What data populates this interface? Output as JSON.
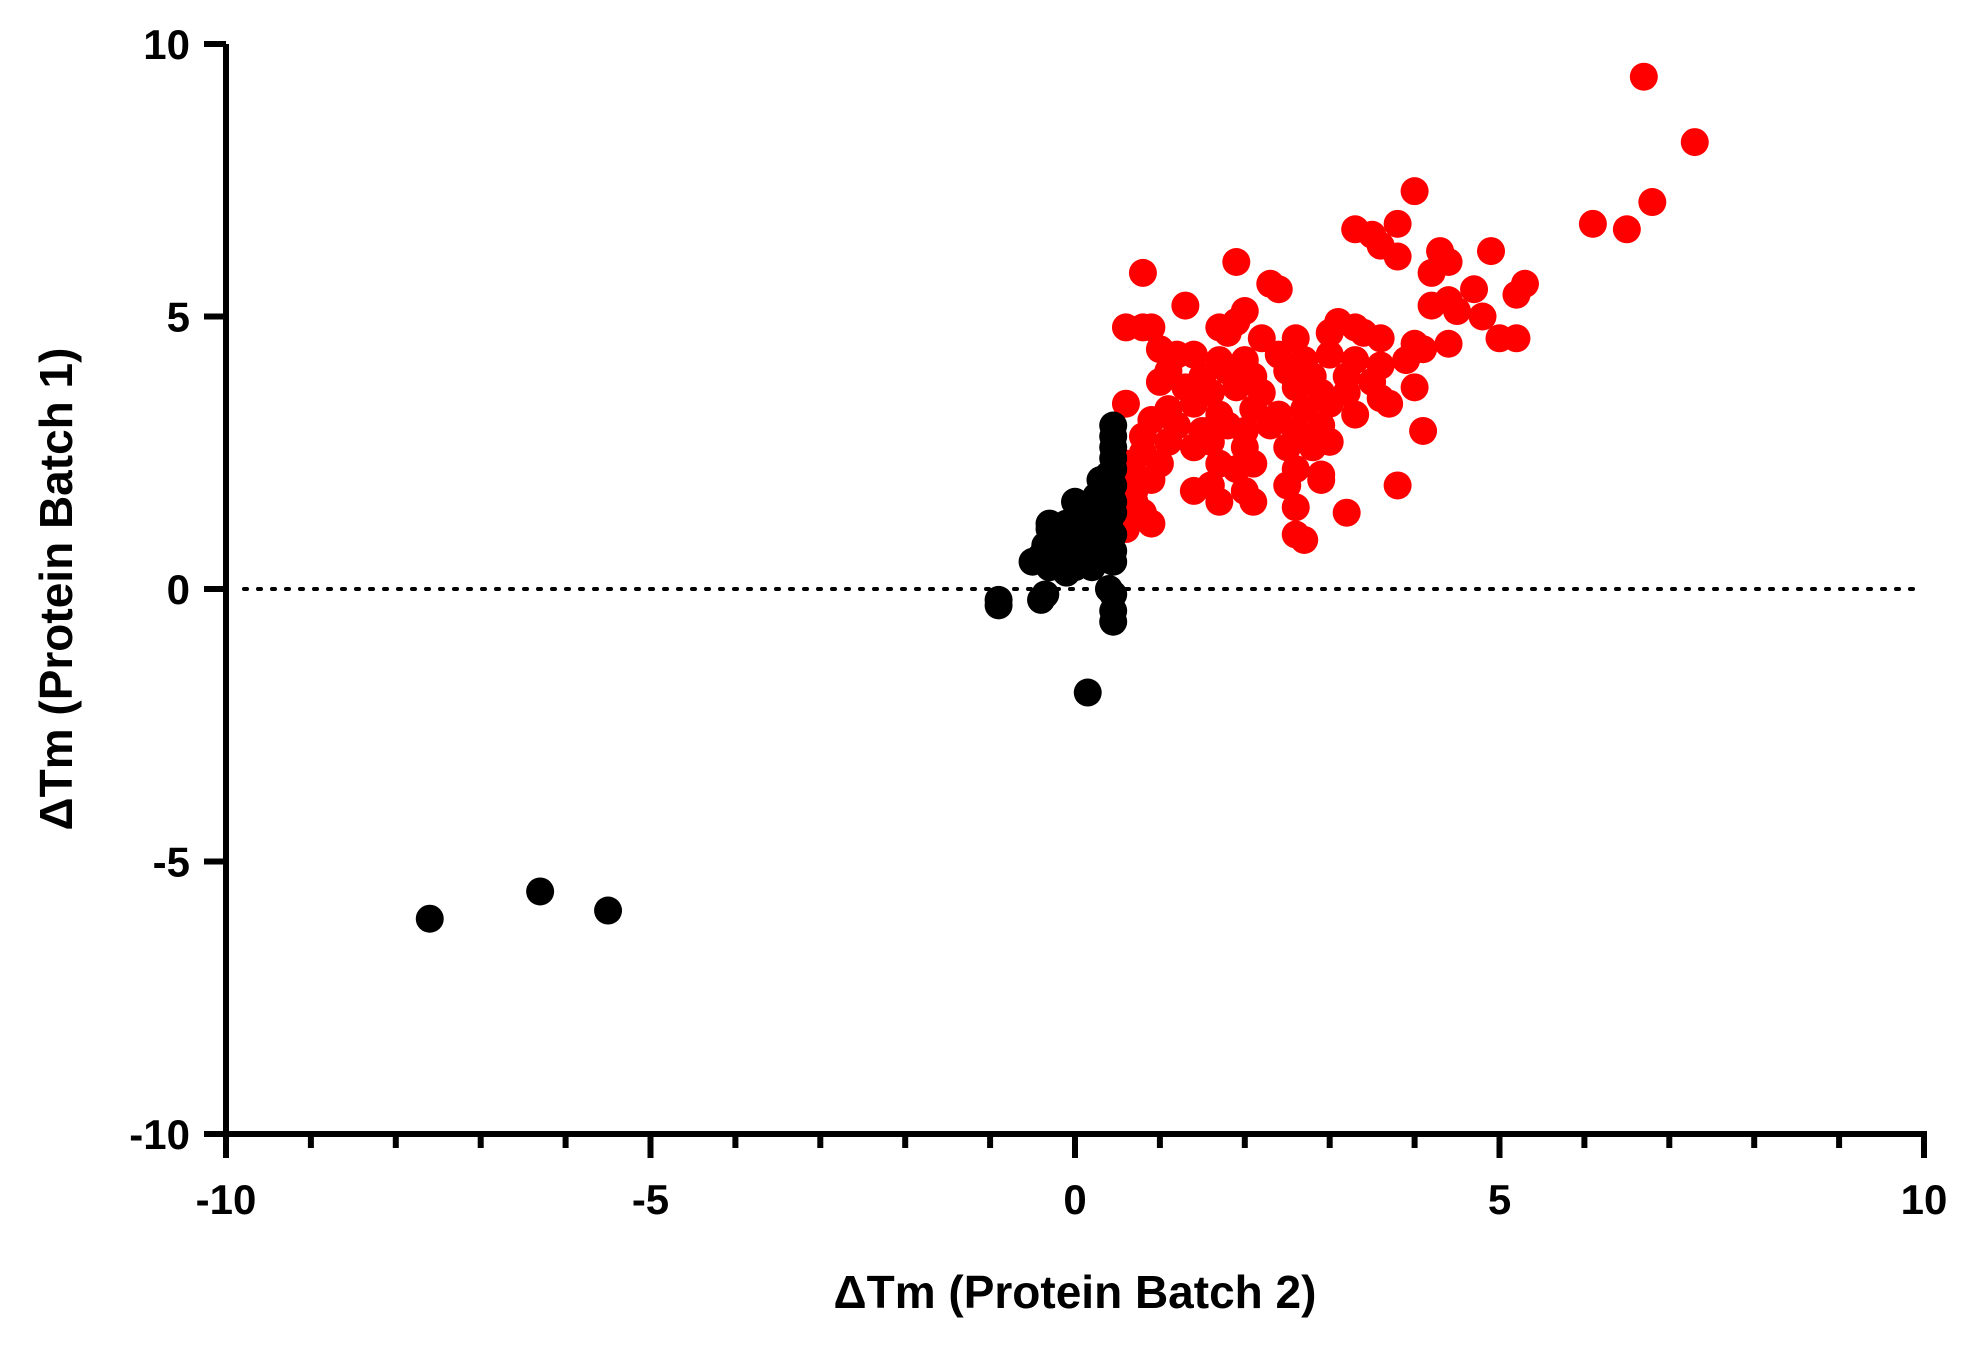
{
  "chart_data": {
    "type": "scatter",
    "title": "",
    "xlabel": "ΔTm (Protein Batch 2)",
    "ylabel": "ΔTm (Protein Batch 1)",
    "xlim": [
      -10,
      10
    ],
    "ylim": [
      -10,
      10
    ],
    "x_ticks": [
      "-10",
      "-5",
      "0",
      "5",
      "10"
    ],
    "y_ticks": [
      "10",
      "5",
      "0",
      "-5",
      "-10"
    ],
    "x_minor_step": 1,
    "reference_line": {
      "y": 0,
      "style": "dotted"
    },
    "grid": false,
    "legend": "none",
    "series": [
      {
        "color": "#ff0000",
        "points": [
          [
            6.7,
            9.4
          ],
          [
            7.3,
            8.2
          ],
          [
            6.8,
            7.1
          ],
          [
            6.1,
            6.7
          ],
          [
            6.5,
            6.6
          ],
          [
            4.0,
            7.3
          ],
          [
            3.8,
            6.7
          ],
          [
            3.3,
            6.6
          ],
          [
            3.5,
            6.5
          ],
          [
            3.6,
            6.3
          ],
          [
            3.8,
            6.1
          ],
          [
            4.3,
            6.2
          ],
          [
            4.4,
            6.0
          ],
          [
            4.9,
            6.2
          ],
          [
            4.2,
            5.8
          ],
          [
            1.9,
            6.0
          ],
          [
            0.8,
            5.8
          ],
          [
            2.3,
            5.6
          ],
          [
            2.4,
            5.5
          ],
          [
            5.3,
            5.6
          ],
          [
            5.2,
            5.4
          ],
          [
            4.7,
            5.5
          ],
          [
            4.4,
            5.3
          ],
          [
            4.2,
            5.2
          ],
          [
            4.5,
            5.1
          ],
          [
            4.8,
            5.0
          ],
          [
            1.3,
            5.2
          ],
          [
            2.0,
            5.1
          ],
          [
            1.9,
            4.9
          ],
          [
            3.1,
            4.9
          ],
          [
            3.3,
            4.8
          ],
          [
            0.6,
            4.8
          ],
          [
            0.8,
            4.8
          ],
          [
            0.9,
            4.8
          ],
          [
            1.7,
            4.8
          ],
          [
            1.8,
            4.7
          ],
          [
            2.2,
            4.6
          ],
          [
            2.6,
            4.6
          ],
          [
            3.0,
            4.7
          ],
          [
            3.4,
            4.7
          ],
          [
            3.6,
            4.6
          ],
          [
            4.0,
            4.5
          ],
          [
            4.1,
            4.4
          ],
          [
            4.4,
            4.5
          ],
          [
            5.0,
            4.6
          ],
          [
            5.2,
            4.6
          ],
          [
            1.0,
            4.4
          ],
          [
            1.2,
            4.3
          ],
          [
            1.4,
            4.3
          ],
          [
            1.7,
            4.2
          ],
          [
            2.0,
            4.2
          ],
          [
            2.4,
            4.3
          ],
          [
            2.7,
            4.2
          ],
          [
            3.0,
            4.3
          ],
          [
            3.3,
            4.2
          ],
          [
            3.6,
            4.1
          ],
          [
            3.9,
            4.2
          ],
          [
            1.1,
            4.0
          ],
          [
            1.5,
            3.9
          ],
          [
            1.8,
            4.0
          ],
          [
            2.1,
            3.9
          ],
          [
            2.5,
            4.0
          ],
          [
            2.8,
            3.9
          ],
          [
            3.2,
            3.9
          ],
          [
            3.5,
            3.8
          ],
          [
            1.0,
            3.8
          ],
          [
            1.3,
            3.7
          ],
          [
            1.6,
            3.6
          ],
          [
            1.9,
            3.7
          ],
          [
            2.2,
            3.6
          ],
          [
            2.6,
            3.7
          ],
          [
            2.9,
            3.6
          ],
          [
            3.2,
            3.6
          ],
          [
            4.0,
            3.7
          ],
          [
            0.6,
            3.4
          ],
          [
            1.1,
            3.3
          ],
          [
            1.4,
            3.4
          ],
          [
            1.7,
            3.2
          ],
          [
            2.1,
            3.3
          ],
          [
            2.4,
            3.2
          ],
          [
            2.7,
            3.3
          ],
          [
            3.0,
            3.4
          ],
          [
            3.3,
            3.2
          ],
          [
            3.6,
            3.5
          ],
          [
            3.7,
            3.4
          ],
          [
            0.9,
            3.1
          ],
          [
            1.2,
            3.0
          ],
          [
            1.5,
            2.9
          ],
          [
            1.8,
            3.0
          ],
          [
            2.0,
            2.9
          ],
          [
            2.3,
            3.0
          ],
          [
            2.6,
            2.9
          ],
          [
            2.9,
            3.0
          ],
          [
            4.1,
            2.9
          ],
          [
            0.8,
            2.8
          ],
          [
            1.1,
            2.7
          ],
          [
            1.4,
            2.6
          ],
          [
            1.6,
            2.7
          ],
          [
            2.0,
            2.6
          ],
          [
            2.5,
            2.6
          ],
          [
            2.8,
            2.6
          ],
          [
            3.0,
            2.7
          ],
          [
            1.0,
            2.3
          ],
          [
            1.7,
            2.3
          ],
          [
            1.9,
            2.2
          ],
          [
            2.1,
            2.3
          ],
          [
            2.6,
            2.2
          ],
          [
            2.9,
            2.1
          ],
          [
            0.7,
            2.1
          ],
          [
            0.9,
            2.0
          ],
          [
            1.4,
            1.8
          ],
          [
            1.6,
            1.9
          ],
          [
            2.0,
            1.8
          ],
          [
            2.5,
            1.9
          ],
          [
            2.9,
            2.0
          ],
          [
            3.8,
            1.9
          ],
          [
            0.7,
            1.8
          ],
          [
            1.7,
            1.6
          ],
          [
            2.1,
            1.6
          ],
          [
            2.6,
            1.5
          ],
          [
            3.2,
            1.4
          ],
          [
            0.8,
            1.4
          ],
          [
            0.9,
            1.2
          ],
          [
            0.6,
            1.1
          ],
          [
            2.6,
            1.0
          ],
          [
            2.7,
            0.9
          ],
          [
            0.7,
            1.6
          ],
          [
            0.6,
            2.3
          ],
          [
            0.8,
            2.5
          ],
          [
            0.6,
            1.5
          ]
        ]
      },
      {
        "color": "#000000",
        "points": [
          [
            0.45,
            3.0
          ],
          [
            0.45,
            2.8
          ],
          [
            0.45,
            2.6
          ],
          [
            0.45,
            2.4
          ],
          [
            0.45,
            2.2
          ],
          [
            0.4,
            2.1
          ],
          [
            0.3,
            2.0
          ],
          [
            0.45,
            1.9
          ],
          [
            0.4,
            1.8
          ],
          [
            0.25,
            1.7
          ],
          [
            0.45,
            1.6
          ],
          [
            0.35,
            1.6
          ],
          [
            0.0,
            1.6
          ],
          [
            0.1,
            1.5
          ],
          [
            0.3,
            1.5
          ],
          [
            0.2,
            1.4
          ],
          [
            0.45,
            1.4
          ],
          [
            0.05,
            1.3
          ],
          [
            0.3,
            1.3
          ],
          [
            -0.1,
            1.2
          ],
          [
            0.15,
            1.2
          ],
          [
            0.4,
            1.2
          ],
          [
            -0.3,
            1.2
          ],
          [
            -0.3,
            1.1
          ],
          [
            0.0,
            1.1
          ],
          [
            0.25,
            1.1
          ],
          [
            0.45,
            1.0
          ],
          [
            -0.2,
            1.0
          ],
          [
            0.1,
            1.0
          ],
          [
            0.35,
            0.9
          ],
          [
            -0.1,
            0.9
          ],
          [
            0.2,
            0.9
          ],
          [
            -0.35,
            0.8
          ],
          [
            0.0,
            0.8
          ],
          [
            0.3,
            0.8
          ],
          [
            0.45,
            0.7
          ],
          [
            -0.15,
            0.7
          ],
          [
            0.15,
            0.7
          ],
          [
            -0.4,
            0.6
          ],
          [
            0.05,
            0.6
          ],
          [
            0.35,
            0.6
          ],
          [
            -0.5,
            0.5
          ],
          [
            -0.2,
            0.5
          ],
          [
            0.25,
            0.5
          ],
          [
            0.45,
            0.5
          ],
          [
            -0.3,
            0.4
          ],
          [
            0.0,
            0.4
          ],
          [
            0.2,
            0.4
          ],
          [
            -0.1,
            0.3
          ],
          [
            0.4,
            0.0
          ],
          [
            -0.35,
            -0.1
          ],
          [
            -0.9,
            -0.2
          ],
          [
            -0.9,
            -0.3
          ],
          [
            -0.4,
            -0.2
          ],
          [
            0.45,
            -0.1
          ],
          [
            0.45,
            -0.4
          ],
          [
            0.45,
            -0.6
          ],
          [
            0.15,
            -1.9
          ],
          [
            -7.6,
            -6.05
          ],
          [
            -6.3,
            -5.55
          ],
          [
            -5.5,
            -5.9
          ]
        ]
      }
    ]
  }
}
